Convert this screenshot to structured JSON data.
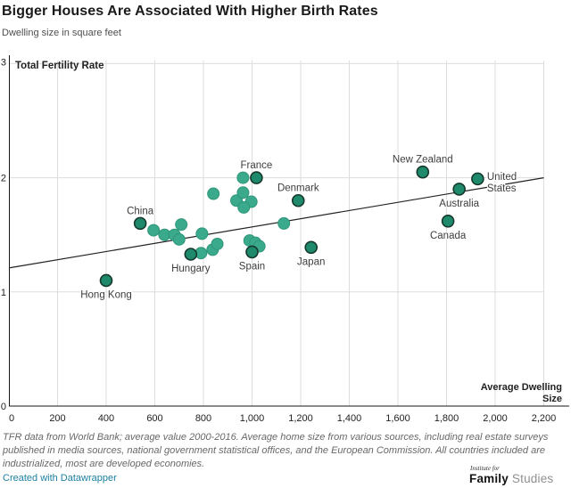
{
  "header": {
    "title": "Bigger Houses Are Associated With Higher Birth Rates",
    "subtitle": "Dwelling size in square feet"
  },
  "chart_data": {
    "type": "scatter",
    "title": "Bigger Houses Are Associated With Higher Birth Rates",
    "subtitle": "Dwelling size in square feet",
    "xlabel": "Average Dwelling Size",
    "xlabel_lines": [
      "Average Dwelling",
      "Size"
    ],
    "ylabel": "Total Fertility Rate",
    "xlim": [
      0,
      2200
    ],
    "ylim": [
      0,
      3
    ],
    "grid": true,
    "x_tick_values": [
      0,
      200,
      400,
      600,
      800,
      1000,
      1200,
      1400,
      1600,
      1800,
      2000,
      2200
    ],
    "x_ticks": [
      "0",
      "200",
      "400",
      "600",
      "800",
      "1,000",
      "1,200",
      "1,400",
      "1,600",
      "1,800",
      "2,000",
      "2,200"
    ],
    "y_tick_values": [
      0,
      1,
      2,
      3
    ],
    "y_ticks": [
      "0",
      "1",
      "2",
      "3"
    ],
    "trendline": {
      "x": [
        0,
        2200
      ],
      "y": [
        1.21,
        2.0
      ]
    },
    "points": [
      {
        "label": "Hong Kong",
        "x": 400,
        "y": 1.1,
        "label_pos": "below"
      },
      {
        "label": "China",
        "x": 540,
        "y": 1.6,
        "label_pos": "above"
      },
      {
        "label": "Hungary",
        "x": 748,
        "y": 1.33,
        "label_pos": "below"
      },
      {
        "label": "Spain",
        "x": 1000,
        "y": 1.35,
        "label_pos": "below"
      },
      {
        "label": "Japan",
        "x": 1243,
        "y": 1.39,
        "label_pos": "below"
      },
      {
        "label": "France",
        "x": 1018,
        "y": 2.0,
        "label_pos": "above"
      },
      {
        "label": "Denmark",
        "x": 1190,
        "y": 1.8,
        "label_pos": "above"
      },
      {
        "label": "New Zealand",
        "x": 1702,
        "y": 2.05,
        "label_pos": "above"
      },
      {
        "label": "Australia",
        "x": 1852,
        "y": 1.9,
        "label_pos": "below"
      },
      {
        "label": "Canada",
        "x": 1806,
        "y": 1.62,
        "label_pos": "below"
      },
      {
        "label": "United States",
        "x": 1928,
        "y": 1.99,
        "label_pos": "right",
        "label_lines": [
          "United",
          "States"
        ]
      },
      {
        "x": 595,
        "y": 1.54
      },
      {
        "x": 640,
        "y": 1.5
      },
      {
        "x": 681,
        "y": 1.5
      },
      {
        "x": 709,
        "y": 1.59
      },
      {
        "x": 700,
        "y": 1.46
      },
      {
        "x": 794,
        "y": 1.51
      },
      {
        "x": 790,
        "y": 1.34
      },
      {
        "x": 838,
        "y": 1.37
      },
      {
        "x": 857,
        "y": 1.42
      },
      {
        "x": 841,
        "y": 1.86
      },
      {
        "x": 936,
        "y": 1.8
      },
      {
        "x": 963,
        "y": 1.87
      },
      {
        "x": 997,
        "y": 1.79
      },
      {
        "x": 966,
        "y": 1.74
      },
      {
        "x": 963,
        "y": 2.0
      },
      {
        "x": 990,
        "y": 1.45
      },
      {
        "x": 1014,
        "y": 1.43
      },
      {
        "x": 1030,
        "y": 1.4
      },
      {
        "x": 1131,
        "y": 1.6
      }
    ]
  },
  "footer": {
    "note": "TFR data from World Bank; average value 2000-2016. Average home size from various sources, including real estate surveys published in media sources, national government statistical offices, and the European Commission. All countries included are industrialized, most are developed economies.",
    "attribution": "Created with Datawrapper",
    "logo": {
      "top": "Institute for",
      "name": "Family",
      "name2": "Studies"
    }
  },
  "colors": {
    "labeled_fill": "#1e8a6b",
    "labeled_stroke": "#16382b",
    "point_fill": "#3aa98c",
    "point_stroke": "#2e9679",
    "trend": "#222222",
    "grid": "#dddddd",
    "axis": "#161616",
    "label_text": "#3d3d3d",
    "tick_text": "#222222",
    "link": "#1d81a2"
  }
}
